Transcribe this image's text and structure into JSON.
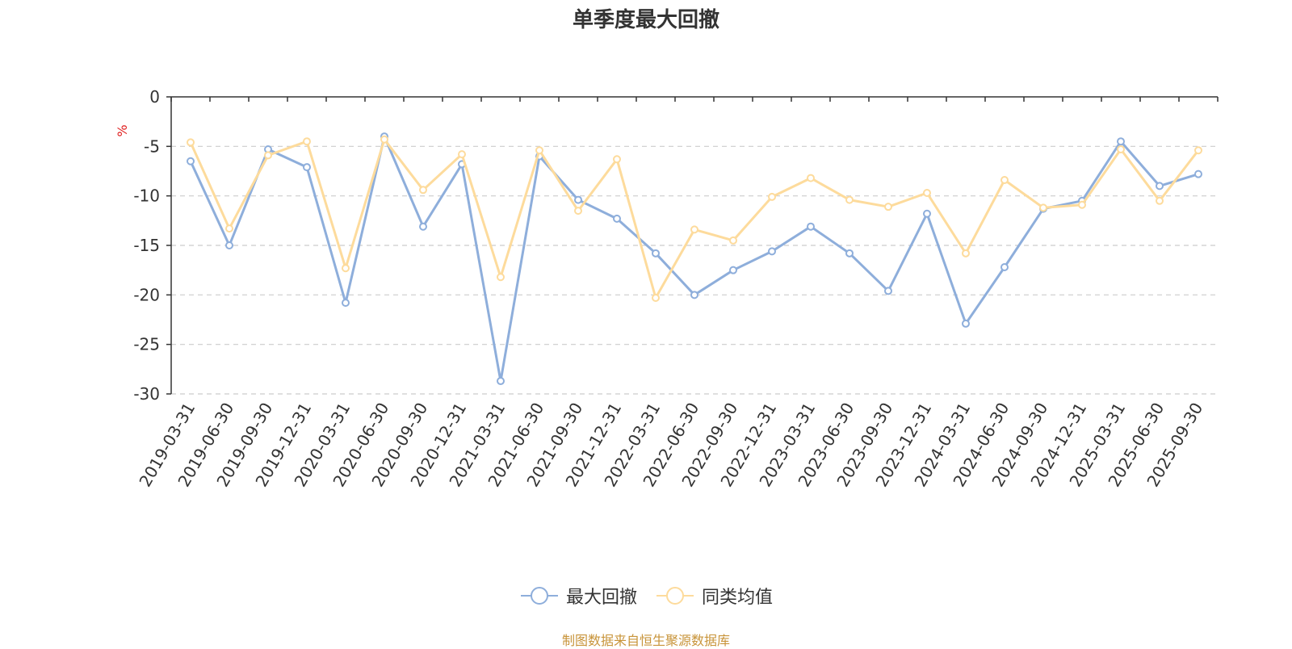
{
  "chart_data": {
    "type": "line",
    "title": "单季度最大回撤",
    "ylabel": "%",
    "ylim": [
      -30,
      0
    ],
    "yticks": [
      0,
      -5,
      -10,
      -15,
      -20,
      -25,
      -30
    ],
    "grid": true,
    "legend_position": "bottom",
    "categories": [
      "2019-03-31",
      "2019-06-30",
      "2019-09-30",
      "2019-12-31",
      "2020-03-31",
      "2020-06-30",
      "2020-09-30",
      "2020-12-31",
      "2021-03-31",
      "2021-06-30",
      "2021-09-30",
      "2021-12-31",
      "2022-03-31",
      "2022-06-30",
      "2022-09-30",
      "2022-12-31",
      "2023-03-31",
      "2023-06-30",
      "2023-09-30",
      "2023-12-31",
      "2024-03-31",
      "2024-06-30",
      "2024-09-30",
      "2024-12-31",
      "2025-03-31",
      "2025-06-30",
      "2025-09-30"
    ],
    "series": [
      {
        "name": "最大回撤",
        "color": "#8eaedb",
        "values": [
          -6.5,
          -15.0,
          -5.3,
          -7.1,
          -20.8,
          -4.0,
          -13.1,
          -6.8,
          -28.7,
          -6.0,
          -10.4,
          -12.3,
          -15.8,
          -20.0,
          -17.5,
          -15.6,
          -13.1,
          -15.8,
          -19.6,
          -11.8,
          -22.9,
          -17.2,
          -11.3,
          -10.5,
          -4.5,
          -9.0,
          -7.8
        ]
      },
      {
        "name": "同类均值",
        "color": "#fddb9c",
        "values": [
          -4.6,
          -13.3,
          -5.9,
          -4.5,
          -17.3,
          -4.3,
          -9.4,
          -5.8,
          -18.2,
          -5.4,
          -11.5,
          -6.3,
          -20.3,
          -13.4,
          -14.5,
          -10.1,
          -8.2,
          -10.4,
          -11.1,
          -9.7,
          -15.8,
          -8.4,
          -11.2,
          -10.9,
          -5.3,
          -10.5,
          -5.4
        ]
      }
    ]
  },
  "footer": {
    "source_text": "制图数据来自恒生聚源数据库",
    "source_color": "#c8943a"
  },
  "style": {
    "axis_color": "#333333",
    "grid_color": "#cccccc",
    "ylabel_color": "#e02020"
  }
}
